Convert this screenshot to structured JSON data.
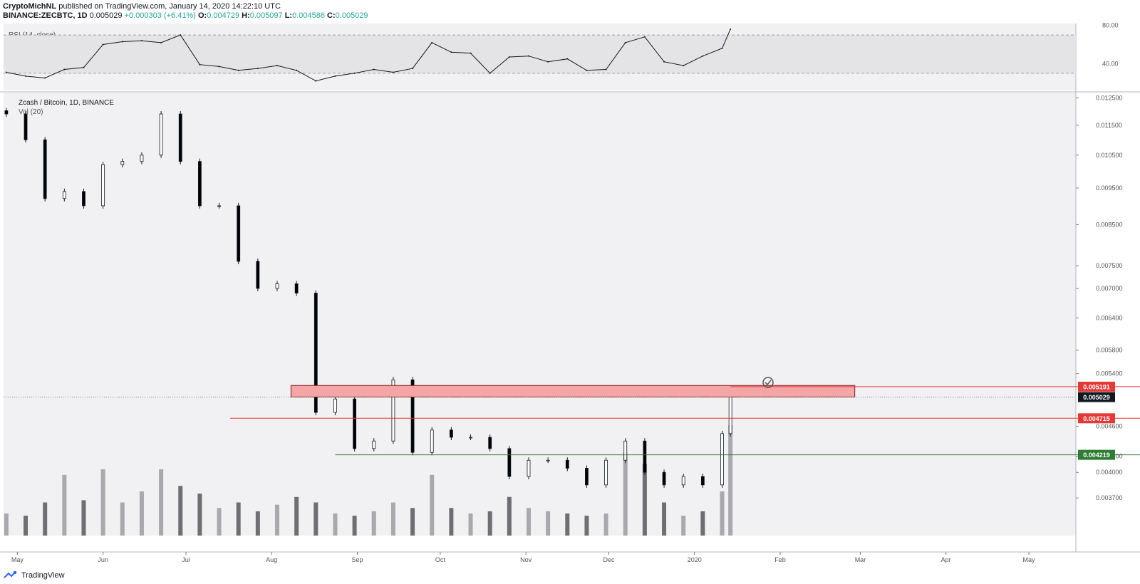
{
  "header": {
    "line1": {
      "author": "CryptoMichNL",
      "published": "published on TradingView.com, January 14, 2020 14:22:10 UTC"
    },
    "line2": {
      "symbol": "BINANCE:ZECBTC, 1D",
      "price": "0.005029",
      "change": "+0.000303 (+6.41%)",
      "o_label": "O:",
      "open": "0.004729",
      "h_label": "H:",
      "high": "0.005097",
      "l_label": "L:",
      "low": "0.004586",
      "c_label": "C:",
      "close": "0.005029"
    }
  },
  "footer": {
    "brand": "TradingView"
  },
  "colors": {
    "up_candle": "#ffffff",
    "down_candle": "#000000",
    "volume_light": "#a9a9ad",
    "volume_dark": "#6f6f73",
    "resistance_zone": "#f4a6a6",
    "red_line": "#e53935",
    "green_line": "#2e7d32",
    "rsi_band": "#e4e4e6",
    "chart_bg": "#f1f1f3"
  },
  "chart_data": [
    {
      "type": "line",
      "title": "RSI (14, close)",
      "ylim": [
        12,
        82
      ],
      "y_ticks": [
        "80.00",
        "40.00"
      ],
      "band": [
        30,
        70
      ],
      "x": [
        "2019-04-27",
        "2019-05-04",
        "2019-05-11",
        "2019-05-18",
        "2019-05-25",
        "2019-06-01",
        "2019-06-08",
        "2019-06-15",
        "2019-06-22",
        "2019-06-29",
        "2019-07-06",
        "2019-07-13",
        "2019-07-20",
        "2019-07-27",
        "2019-08-03",
        "2019-08-10",
        "2019-08-17",
        "2019-08-24",
        "2019-08-31",
        "2019-09-07",
        "2019-09-14",
        "2019-09-21",
        "2019-09-28",
        "2019-10-05",
        "2019-10-12",
        "2019-10-19",
        "2019-10-26",
        "2019-11-02",
        "2019-11-09",
        "2019-11-16",
        "2019-11-23",
        "2019-11-30",
        "2019-12-07",
        "2019-12-14",
        "2019-12-21",
        "2019-12-28",
        "2020-01-04",
        "2020-01-11",
        "2020-01-14"
      ],
      "values": [
        31,
        27,
        25,
        34,
        36,
        60,
        63,
        64,
        62,
        70,
        39,
        37,
        33,
        35,
        38,
        33,
        22,
        27,
        30,
        34,
        31,
        35,
        62,
        52,
        51,
        30,
        47,
        48,
        42,
        45,
        33,
        34,
        62,
        68,
        42,
        38,
        48,
        56,
        76
      ]
    },
    {
      "type": "candlestick",
      "title": "Zcash / Bitcoin, 1D, BINANCE",
      "scale": "log",
      "ylim": [
        0.0033,
        0.0127
      ],
      "y_ticks": [
        "0.012500",
        "0.011500",
        "0.010500",
        "0.009500",
        "0.008500",
        "0.007500",
        "0.007000",
        "0.006400",
        "0.005800",
        "0.005400",
        "0.004600",
        "0.004200",
        "0.004000",
        "0.003700"
      ],
      "x_ticks": [
        "May",
        "Jun",
        "Jul",
        "Aug",
        "Sep",
        "Oct",
        "Nov",
        "Dec",
        "2020",
        "Feb",
        "Mar",
        "Apr",
        "May"
      ],
      "x": [
        "2019-04-27",
        "2019-05-04",
        "2019-05-11",
        "2019-05-18",
        "2019-05-25",
        "2019-06-01",
        "2019-06-08",
        "2019-06-15",
        "2019-06-22",
        "2019-06-29",
        "2019-07-06",
        "2019-07-13",
        "2019-07-20",
        "2019-07-27",
        "2019-08-03",
        "2019-08-10",
        "2019-08-17",
        "2019-08-24",
        "2019-08-31",
        "2019-09-07",
        "2019-09-14",
        "2019-09-21",
        "2019-09-28",
        "2019-10-05",
        "2019-10-12",
        "2019-10-19",
        "2019-10-26",
        "2019-11-02",
        "2019-11-09",
        "2019-11-16",
        "2019-11-23",
        "2019-11-30",
        "2019-12-07",
        "2019-12-14",
        "2019-12-21",
        "2019-12-28",
        "2020-01-04",
        "2020-01-11",
        "2020-01-14"
      ],
      "close": [
        0.0119,
        0.011,
        0.0092,
        0.0094,
        0.009,
        0.0102,
        0.0103,
        0.0105,
        0.0119,
        0.0103,
        0.009,
        0.009,
        0.0076,
        0.007,
        0.0071,
        0.0069,
        0.0048,
        0.005,
        0.0043,
        0.0044,
        0.0053,
        0.00425,
        0.00455,
        0.00445,
        0.00445,
        0.0043,
        0.00395,
        0.00415,
        0.00415,
        0.00405,
        0.00385,
        0.00415,
        0.0044,
        0.004,
        0.00385,
        0.00395,
        0.00385,
        0.0045,
        0.00503
      ],
      "price_labels": [
        "0.005191",
        "0.005029",
        "0.004715",
        "0.004219"
      ],
      "annotations": {
        "resistance_zone": [
          0.00503,
          0.00521
        ],
        "red_line": 0.004715,
        "green_line": 0.004219
      }
    },
    {
      "type": "bar",
      "title": "Vol (20)",
      "x": [
        "2019-04-27",
        "2019-05-04",
        "2019-05-11",
        "2019-05-18",
        "2019-05-25",
        "2019-06-01",
        "2019-06-08",
        "2019-06-15",
        "2019-06-22",
        "2019-06-29",
        "2019-07-06",
        "2019-07-13",
        "2019-07-20",
        "2019-07-27",
        "2019-08-03",
        "2019-08-10",
        "2019-08-17",
        "2019-08-24",
        "2019-08-31",
        "2019-09-07",
        "2019-09-14",
        "2019-09-21",
        "2019-09-28",
        "2019-10-05",
        "2019-10-12",
        "2019-10-19",
        "2019-10-26",
        "2019-11-02",
        "2019-11-09",
        "2019-11-16",
        "2019-11-23",
        "2019-11-30",
        "2019-12-07",
        "2019-12-14",
        "2019-12-21",
        "2019-12-28",
        "2020-01-04",
        "2020-01-11",
        "2020-01-14"
      ],
      "values": [
        0.2,
        0.18,
        0.3,
        0.55,
        0.32,
        0.6,
        0.3,
        0.4,
        0.6,
        0.45,
        0.38,
        0.25,
        0.3,
        0.22,
        0.28,
        0.35,
        0.3,
        0.2,
        0.18,
        0.22,
        0.3,
        0.25,
        0.55,
        0.25,
        0.2,
        0.22,
        0.35,
        0.25,
        0.22,
        0.2,
        0.18,
        0.2,
        0.75,
        0.65,
        0.3,
        0.18,
        0.22,
        0.4,
        1.0
      ]
    }
  ]
}
